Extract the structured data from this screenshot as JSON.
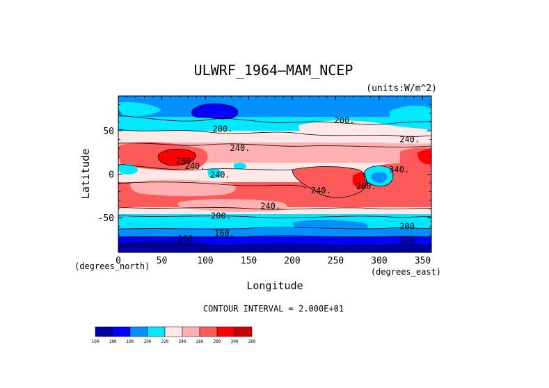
{
  "title": "ULWRF_1964—MAM_NCEP",
  "units": "(units:W/m^2)",
  "y_label": "Latitude",
  "x_label": "Longitude",
  "x_units": "(degrees_east)",
  "y_units": "(degrees_north)",
  "contour_interval_text": "CONTOUR INTERVAL = 2.000E+01",
  "chart_data": {
    "type": "heatmap",
    "title": "ULWRF_1964—MAM_NCEP",
    "xlabel": "Longitude",
    "ylabel": "Latitude",
    "xlim": [
      0,
      360
    ],
    "ylim": [
      -90,
      90
    ],
    "x_ticks": [
      0,
      50,
      100,
      150,
      200,
      250,
      300,
      350
    ],
    "y_ticks": [
      -50,
      0,
      50
    ],
    "contour_labels": [
      {
        "text": "200.",
        "lon": 120,
        "lat": 49
      },
      {
        "text": "200.",
        "lon": 260,
        "lat": 59
      },
      {
        "text": "240.",
        "lon": 140,
        "lat": 27
      },
      {
        "text": "240.",
        "lon": 335,
        "lat": 37
      },
      {
        "text": "280.",
        "lon": 78,
        "lat": 12
      },
      {
        "text": "240.",
        "lon": 88,
        "lat": 6
      },
      {
        "text": "240.",
        "lon": 117,
        "lat": -4
      },
      {
        "text": "340.",
        "lon": 323,
        "lat": 2
      },
      {
        "text": "280.",
        "lon": 285,
        "lat": -17
      },
      {
        "text": "240.",
        "lon": 233,
        "lat": -22
      },
      {
        "text": "240.",
        "lon": 175,
        "lat": -40
      },
      {
        "text": "200.",
        "lon": 118,
        "lat": -51
      },
      {
        "text": "200.",
        "lon": 335,
        "lat": -63
      },
      {
        "text": "160.",
        "lon": 122,
        "lat": -71
      },
      {
        "text": "160.",
        "lon": 80,
        "lat": -77
      },
      {
        "text": "160.",
        "lon": 335,
        "lat": -79
      }
    ],
    "colorbar": {
      "levels": [
        "100",
        "180",
        "190",
        "200",
        "220",
        "240",
        "260",
        "280",
        "300",
        "360"
      ],
      "colors": [
        "#0000a0",
        "#0000ff",
        "#0090ff",
        "#00e8ff",
        "#ffe8e8",
        "#ffb0b0",
        "#ff5a5a",
        "#ff0000",
        "#c80000"
      ]
    }
  }
}
